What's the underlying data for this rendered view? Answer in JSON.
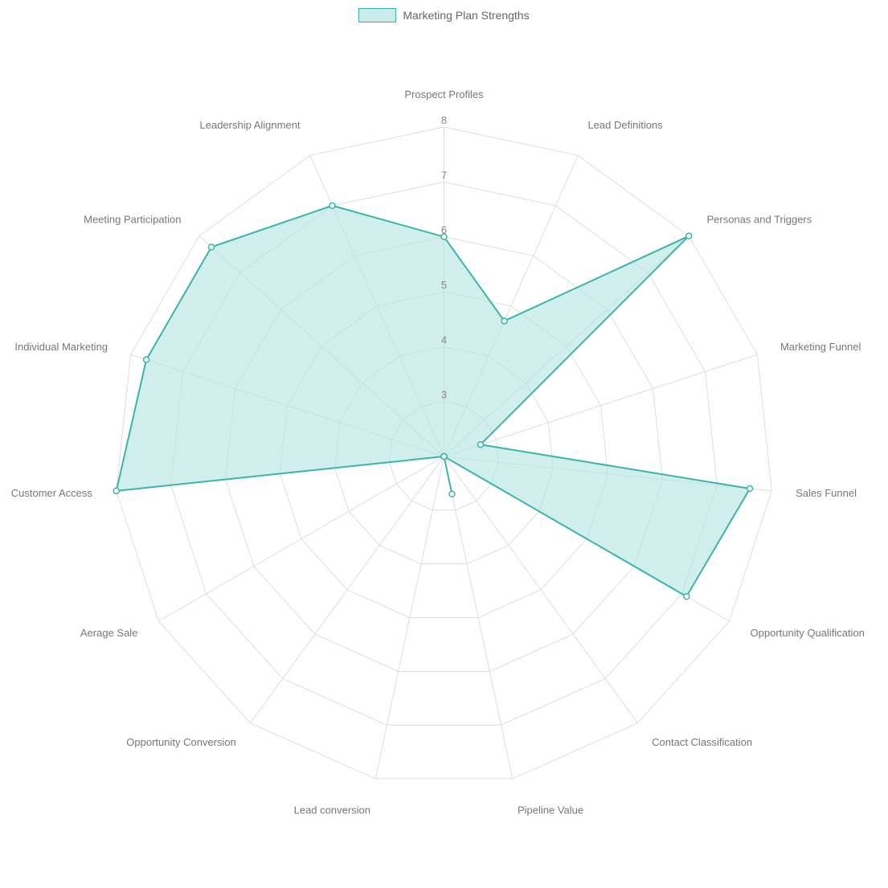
{
  "chart": {
    "type": "radar",
    "legend_label": "Marketing Plan Strengths",
    "series_fill_color": "#b5e5e2",
    "series_fill_opacity": 0.65,
    "series_stroke_color": "#3bb5aa",
    "series_stroke_width": 2,
    "point_radius": 3.5,
    "point_fill": "#ffffff",
    "point_stroke": "#3bb5aa",
    "grid_color": "#dddddd",
    "grid_stroke_width": 1,
    "background_color": "#ffffff",
    "label_color": "#777777",
    "label_fontsize": 13,
    "tick_color": "#888888",
    "tick_fontsize": 13,
    "legend_swatch_fill": "#c9ecea",
    "legend_swatch_border": "#3bb5aa",
    "legend_text_color": "#666666",
    "rmin": 2,
    "rmax": 8,
    "ticks": [
      3,
      4,
      5,
      6,
      7,
      8
    ],
    "center_marker": true,
    "axes": [
      {
        "label": "Prospect Profiles",
        "value": 6.0
      },
      {
        "label": "Lead Definitions",
        "value": 4.7
      },
      {
        "label": "Personas and Triggers",
        "value": 8.0
      },
      {
        "label": "Marketing Funnel",
        "value": 2.7
      },
      {
        "label": "Sales Funnel",
        "value": 7.6
      },
      {
        "label": "Opportunity Qualification",
        "value": 7.1
      },
      {
        "label": "Contact Classification",
        "value": 2.0
      },
      {
        "label": "Pipeline Value",
        "value": 2.7
      },
      {
        "label": "Lead conversion",
        "value": 2.0
      },
      {
        "label": "Opportunity Conversion",
        "value": 2.0
      },
      {
        "label": "Aerage Sale",
        "value": 2.0
      },
      {
        "label": "Customer Access",
        "value": 8.0
      },
      {
        "label": "Individual Marketing",
        "value": 7.7
      },
      {
        "label": "Meeting Participation",
        "value": 7.7
      },
      {
        "label": "Leadership Alignment",
        "value": 7.0
      }
    ]
  }
}
